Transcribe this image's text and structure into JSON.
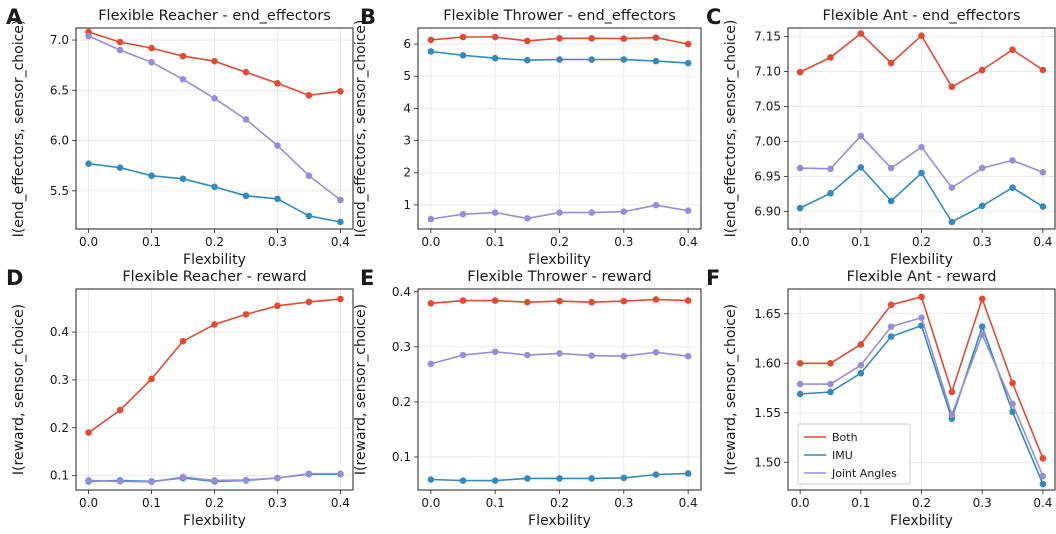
{
  "colors": {
    "both": "#e24a33",
    "imu": "#348abd",
    "joint_angles": "#988ed5",
    "grid": "#e6e6e6",
    "axis": "#222222"
  },
  "legend": {
    "panel": "F",
    "placement": "lower-left",
    "entries": [
      {
        "label": "Both",
        "color": "#e24a33"
      },
      {
        "label": "IMU",
        "color": "#348abd"
      },
      {
        "label": "Joint Angles",
        "color": "#988ed5"
      }
    ]
  },
  "chart_data": [
    {
      "type": "line",
      "panel": "A",
      "title": "Flexible Reacher - end_effectors",
      "xlabel": "Flexbility",
      "ylabel": "I(end_effectors, sensor_choice)",
      "x": [
        0.0,
        0.05,
        0.1,
        0.15,
        0.2,
        0.25,
        0.3,
        0.35,
        0.4
      ],
      "xlim": [
        -0.02,
        0.42
      ],
      "ylim": [
        5.12,
        7.12
      ],
      "xticks": [
        "0.0",
        "0.1",
        "0.2",
        "0.3",
        "0.4"
      ],
      "yticks": [
        "5.5",
        "6.0",
        "6.5",
        "7.0"
      ],
      "grid": true,
      "series": [
        {
          "name": "Both",
          "color": "#e24a33",
          "values": [
            7.08,
            6.98,
            6.92,
            6.84,
            6.79,
            6.68,
            6.57,
            6.45,
            6.49
          ]
        },
        {
          "name": "IMU",
          "color": "#348abd",
          "values": [
            5.77,
            5.73,
            5.65,
            5.62,
            5.54,
            5.45,
            5.42,
            5.25,
            5.19
          ]
        },
        {
          "name": "Joint Angles",
          "color": "#988ed5",
          "values": [
            7.04,
            6.9,
            6.78,
            6.61,
            6.42,
            6.21,
            5.95,
            5.65,
            5.41
          ]
        }
      ]
    },
    {
      "type": "line",
      "panel": "B",
      "title": "Flexible Thrower - end_effectors",
      "xlabel": "Flexbility",
      "ylabel": "I(end_effectors, sensor_choice)",
      "x": [
        0.0,
        0.05,
        0.1,
        0.15,
        0.2,
        0.25,
        0.3,
        0.35,
        0.4
      ],
      "xlim": [
        -0.02,
        0.42
      ],
      "ylim": [
        0.25,
        6.5
      ],
      "xticks": [
        "0.0",
        "0.1",
        "0.2",
        "0.3",
        "0.4"
      ],
      "yticks": [
        "1",
        "2",
        "3",
        "4",
        "5",
        "6"
      ],
      "grid": true,
      "series": [
        {
          "name": "Both",
          "color": "#e24a33",
          "values": [
            6.13,
            6.22,
            6.22,
            6.1,
            6.18,
            6.18,
            6.17,
            6.2,
            6.0
          ]
        },
        {
          "name": "IMU",
          "color": "#348abd",
          "values": [
            5.77,
            5.65,
            5.56,
            5.5,
            5.52,
            5.52,
            5.52,
            5.47,
            5.41
          ]
        },
        {
          "name": "Joint Angles",
          "color": "#988ed5",
          "values": [
            0.56,
            0.71,
            0.76,
            0.58,
            0.76,
            0.76,
            0.79,
            0.99,
            0.82
          ]
        }
      ]
    },
    {
      "type": "line",
      "panel": "C",
      "title": "Flexible Ant - end_effectors",
      "xlabel": "Flexbility",
      "ylabel": "I(end_effectors, sensor_choice)",
      "x": [
        0.0,
        0.05,
        0.1,
        0.15,
        0.2,
        0.25,
        0.3,
        0.35,
        0.4
      ],
      "xlim": [
        -0.02,
        0.42
      ],
      "ylim": [
        6.875,
        7.162
      ],
      "xticks": [
        "0.0",
        "0.1",
        "0.2",
        "0.3",
        "0.4"
      ],
      "yticks": [
        "6.90",
        "6.95",
        "7.00",
        "7.05",
        "7.10",
        "7.15"
      ],
      "grid": true,
      "series": [
        {
          "name": "Both",
          "color": "#e24a33",
          "values": [
            7.099,
            7.12,
            7.154,
            7.112,
            7.151,
            7.078,
            7.102,
            7.131,
            7.102
          ]
        },
        {
          "name": "IMU",
          "color": "#348abd",
          "values": [
            6.905,
            6.926,
            6.963,
            6.915,
            6.955,
            6.885,
            6.908,
            6.934,
            6.907
          ]
        },
        {
          "name": "Joint Angles",
          "color": "#988ed5",
          "values": [
            6.962,
            6.961,
            7.008,
            6.962,
            6.992,
            6.934,
            6.962,
            6.973,
            6.956
          ]
        }
      ]
    },
    {
      "type": "line",
      "panel": "D",
      "title": "Flexible Reacher - reward",
      "xlabel": "Flexbility",
      "ylabel": "I(reward, sensor_choice)",
      "x": [
        0.0,
        0.05,
        0.1,
        0.15,
        0.2,
        0.25,
        0.3,
        0.35,
        0.4
      ],
      "xlim": [
        -0.02,
        0.42
      ],
      "ylim": [
        0.07,
        0.49
      ],
      "xticks": [
        "0.0",
        "0.1",
        "0.2",
        "0.3",
        "0.4"
      ],
      "yticks": [
        "0.1",
        "0.2",
        "0.3",
        "0.4"
      ],
      "grid": true,
      "series": [
        {
          "name": "Both",
          "color": "#e24a33",
          "values": [
            0.19,
            0.237,
            0.302,
            0.381,
            0.416,
            0.437,
            0.455,
            0.463,
            0.469
          ]
        },
        {
          "name": "IMU",
          "color": "#348abd",
          "values": [
            0.088,
            0.09,
            0.088,
            0.095,
            0.088,
            0.09,
            0.095,
            0.103,
            0.103
          ]
        },
        {
          "name": "Joint Angles",
          "color": "#988ed5",
          "values": [
            0.09,
            0.088,
            0.087,
            0.097,
            0.09,
            0.091,
            0.095,
            0.104,
            0.104
          ]
        }
      ]
    },
    {
      "type": "line",
      "panel": "E",
      "title": "Flexible Thrower - reward",
      "xlabel": "Flexbility",
      "ylabel": "I(reward, sensor_choice)",
      "x": [
        0.0,
        0.05,
        0.1,
        0.15,
        0.2,
        0.25,
        0.3,
        0.35,
        0.4
      ],
      "xlim": [
        -0.02,
        0.42
      ],
      "ylim": [
        0.04,
        0.405
      ],
      "xticks": [
        "0.0",
        "0.1",
        "0.2",
        "0.3",
        "0.4"
      ],
      "yticks": [
        "0.1",
        "0.2",
        "0.3",
        "0.4"
      ],
      "grid": true,
      "series": [
        {
          "name": "Both",
          "color": "#e24a33",
          "values": [
            0.379,
            0.384,
            0.384,
            0.381,
            0.383,
            0.381,
            0.383,
            0.386,
            0.384
          ]
        },
        {
          "name": "IMU",
          "color": "#348abd",
          "values": [
            0.059,
            0.057,
            0.057,
            0.061,
            0.061,
            0.061,
            0.062,
            0.068,
            0.07
          ]
        },
        {
          "name": "Joint Angles",
          "color": "#988ed5",
          "values": [
            0.269,
            0.285,
            0.291,
            0.285,
            0.288,
            0.284,
            0.283,
            0.29,
            0.283
          ]
        }
      ]
    },
    {
      "type": "line",
      "panel": "F",
      "title": "Flexible Ant - reward",
      "xlabel": "Flexbility",
      "ylabel": "I(reward, sensor_choice)",
      "x": [
        0.0,
        0.05,
        0.1,
        0.15,
        0.2,
        0.25,
        0.3,
        0.35,
        0.4
      ],
      "xlim": [
        -0.02,
        0.42
      ],
      "ylim": [
        1.472,
        1.675
      ],
      "xticks": [
        "0.0",
        "0.1",
        "0.2",
        "0.3",
        "0.4"
      ],
      "yticks": [
        "1.50",
        "1.55",
        "1.60",
        "1.65"
      ],
      "grid": true,
      "series": [
        {
          "name": "Both",
          "color": "#e24a33",
          "values": [
            1.6,
            1.6,
            1.619,
            1.659,
            1.667,
            1.571,
            1.665,
            1.58,
            1.504
          ]
        },
        {
          "name": "IMU",
          "color": "#348abd",
          "values": [
            1.569,
            1.571,
            1.59,
            1.627,
            1.638,
            1.544,
            1.637,
            1.551,
            1.478
          ]
        },
        {
          "name": "Joint Angles",
          "color": "#988ed5",
          "values": [
            1.579,
            1.579,
            1.598,
            1.637,
            1.646,
            1.548,
            1.629,
            1.559,
            1.486
          ]
        }
      ]
    }
  ]
}
